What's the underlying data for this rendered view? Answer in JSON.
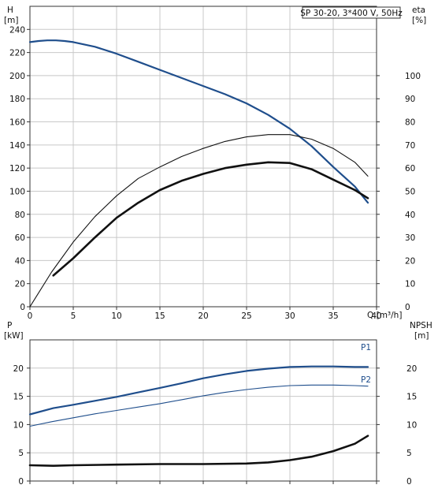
{
  "chart_data": [
    {
      "type": "line",
      "title": "SP 30-20, 3*400 V, 50Hz",
      "y_left_label": "H",
      "y_left_unit": "[m]",
      "y_right_label": "eta",
      "y_right_unit": "[%]",
      "x_label": "Q [m³/h]",
      "xlim": [
        0,
        40
      ],
      "x_ticks": [
        "0",
        "5",
        "10",
        "15",
        "20",
        "25",
        "30",
        "35",
        "40"
      ],
      "ylim_left": [
        0,
        260
      ],
      "y_left_ticks": [
        "0",
        "20",
        "40",
        "60",
        "80",
        "100",
        "120",
        "140",
        "160",
        "180",
        "200",
        "220",
        "240"
      ],
      "ylim_right": [
        0,
        130
      ],
      "y_right_ticks": [
        "0",
        "10",
        "20",
        "30",
        "40",
        "50",
        "60",
        "70",
        "80",
        "90",
        "100"
      ],
      "grid": true,
      "series": [
        {
          "key": "head",
          "axis": "left",
          "color": "#1f4e8c",
          "x": [
            0,
            1,
            2,
            3,
            4,
            5,
            7.5,
            10,
            12.5,
            15,
            17.5,
            20,
            22.5,
            25,
            27.5,
            30,
            32.5,
            35,
            37.5,
            39
          ],
          "y": [
            229,
            230,
            230.5,
            230.5,
            230,
            229,
            225,
            219,
            212,
            205,
            198,
            191,
            184,
            176,
            166,
            154,
            139,
            121,
            104,
            90
          ]
        },
        {
          "key": "eta_thin",
          "axis": "right",
          "color": "#111111",
          "x": [
            0,
            2.5,
            5,
            7.5,
            10,
            12.5,
            15,
            17.5,
            20,
            22.5,
            25,
            27.5,
            30,
            32.5,
            35,
            37.5,
            39
          ],
          "y": [
            0,
            15,
            28,
            39,
            48,
            55.5,
            60.5,
            65,
            68.5,
            71.5,
            73.5,
            74.5,
            74.5,
            72.5,
            68.5,
            62.5,
            56.5
          ]
        },
        {
          "key": "eta_bold",
          "axis": "right",
          "color": "#111111",
          "x": [
            2.7,
            5,
            7.5,
            10,
            12.5,
            15,
            17.5,
            20,
            22.5,
            25,
            27.5,
            30,
            32.5,
            35,
            37.5,
            39
          ],
          "y": [
            13.5,
            21,
            30,
            38.5,
            45,
            50.5,
            54.5,
            57.5,
            60,
            61.5,
            62.5,
            62.2,
            59.5,
            55,
            50.5,
            47
          ]
        }
      ]
    },
    {
      "type": "line",
      "y_left_label": "P",
      "y_left_unit": "[kW]",
      "y_right_label": "NPSH",
      "y_right_unit": "[m]",
      "xlim": [
        0,
        40
      ],
      "ylim_left": [
        0,
        25
      ],
      "y_left_ticks": [
        "0",
        "5",
        "10",
        "15",
        "20"
      ],
      "ylim_right": [
        0,
        25
      ],
      "y_right_ticks": [
        "0",
        "5",
        "10",
        "15",
        "20"
      ],
      "grid": true,
      "series": [
        {
          "key": "p1",
          "name": "P1",
          "axis": "left",
          "color": "#1f4e8c",
          "x": [
            0,
            2.7,
            5,
            7.5,
            10,
            12.5,
            15,
            17.5,
            20,
            22.5,
            25,
            27.5,
            30,
            32.5,
            35,
            37.5,
            39
          ],
          "y": [
            11.8,
            12.9,
            13.5,
            14.2,
            14.9,
            15.7,
            16.5,
            17.3,
            18.2,
            18.9,
            19.5,
            19.9,
            20.2,
            20.3,
            20.3,
            20.2,
            20.2
          ]
        },
        {
          "key": "p2",
          "name": "P2",
          "axis": "left",
          "color": "#1f4e8c",
          "x": [
            0,
            2.5,
            5,
            7.5,
            10,
            12.5,
            15,
            17.5,
            20,
            22.5,
            25,
            27.5,
            30,
            32.5,
            35,
            37.5,
            39
          ],
          "y": [
            9.7,
            10.5,
            11.2,
            11.9,
            12.5,
            13.1,
            13.7,
            14.4,
            15.1,
            15.7,
            16.2,
            16.6,
            16.9,
            17.0,
            17.0,
            16.9,
            16.8
          ]
        },
        {
          "key": "npsh",
          "axis": "right",
          "color": "#111111",
          "x": [
            0,
            2.7,
            5,
            10,
            15,
            20,
            25,
            27.5,
            30,
            32.5,
            35,
            37.5,
            39
          ],
          "y": [
            2.8,
            2.7,
            2.8,
            2.9,
            3.0,
            3.0,
            3.1,
            3.3,
            3.7,
            4.3,
            5.3,
            6.6,
            8.0
          ]
        }
      ]
    }
  ]
}
